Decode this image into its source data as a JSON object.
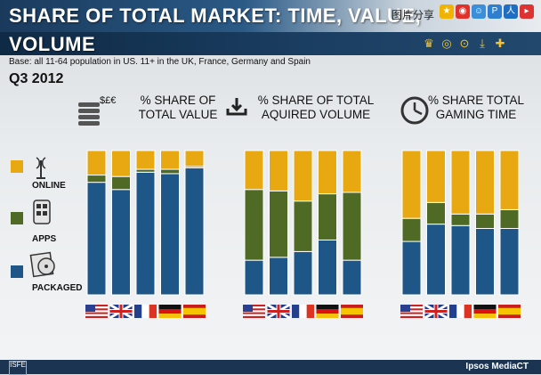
{
  "header": {
    "title_line1": "SHARE OF TOTAL MARKET: TIME, VALUE,",
    "title_line2": "VOLUME",
    "share_label": "图片分享"
  },
  "base_note": "Base: all 11-64 population in US. 11+ in the UK, France, Germany and Spain",
  "period": "Q3 2012",
  "legend": [
    {
      "label": "ONLINE",
      "color": "#e8a812"
    },
    {
      "label": "APPS",
      "color": "#4f6a25"
    },
    {
      "label": "PACKAGED",
      "color": "#1d5687"
    }
  ],
  "footer": {
    "brand": "Ipsos MediaCT",
    "logo": "ISFE"
  },
  "countries": [
    "US",
    "UK",
    "France",
    "Germany",
    "Spain"
  ],
  "chart_data": [
    {
      "type": "bar",
      "stacked": true,
      "title": "% SHARE OF TOTAL VALUE",
      "icon_text": "$£€",
      "categories": [
        "US",
        "UK",
        "France",
        "Germany",
        "Spain"
      ],
      "series": [
        {
          "name": "PACKAGED",
          "values": [
            78,
            73,
            85,
            84,
            88
          ]
        },
        {
          "name": "APPS",
          "values": [
            5,
            9,
            2,
            3,
            1
          ]
        },
        {
          "name": "ONLINE",
          "values": [
            17,
            18,
            13,
            13,
            11
          ]
        }
      ],
      "ylim": [
        0,
        100
      ]
    },
    {
      "type": "bar",
      "stacked": true,
      "title": "% SHARE OF TOTAL AQUIRED VOLUME",
      "categories": [
        "US",
        "UK",
        "France",
        "Germany",
        "Spain"
      ],
      "series": [
        {
          "name": "PACKAGED",
          "values": [
            24,
            26,
            30,
            38,
            24
          ]
        },
        {
          "name": "APPS",
          "values": [
            49,
            46,
            35,
            32,
            47
          ]
        },
        {
          "name": "ONLINE",
          "values": [
            27,
            28,
            35,
            30,
            29
          ]
        }
      ],
      "ylim": [
        0,
        100
      ]
    },
    {
      "type": "bar",
      "stacked": true,
      "title": "% SHARE TOTAL GAMING TIME",
      "categories": [
        "US",
        "UK",
        "France",
        "Germany",
        "Spain"
      ],
      "series": [
        {
          "name": "PACKAGED",
          "values": [
            37,
            49,
            48,
            46,
            46
          ]
        },
        {
          "name": "APPS",
          "values": [
            16,
            15,
            8,
            10,
            13
          ]
        },
        {
          "name": "ONLINE",
          "values": [
            47,
            36,
            44,
            44,
            41
          ]
        }
      ],
      "ylim": [
        0,
        100
      ]
    }
  ]
}
